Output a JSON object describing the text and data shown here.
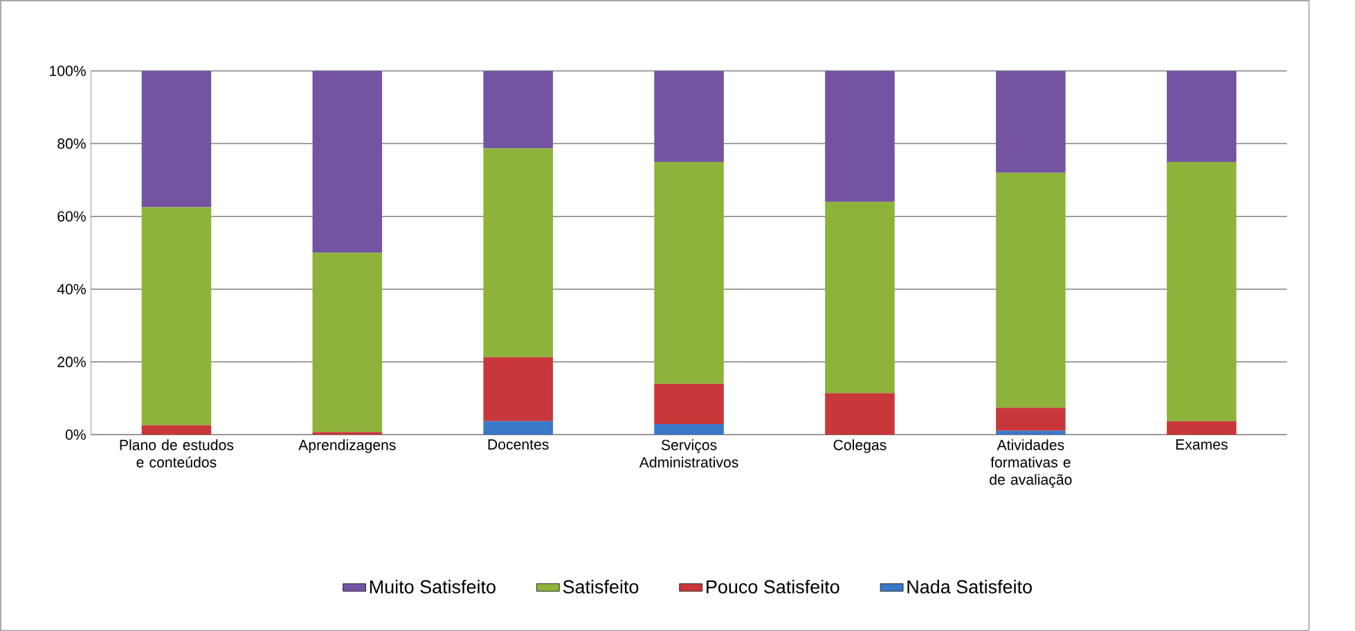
{
  "chart_data": {
    "type": "bar",
    "stacked": true,
    "categories": [
      "Plano de estudos e conteúdos",
      "Aprendizagens",
      "Docentes",
      "Serviços Administrativos",
      "Colegas",
      "Atividades formativas e de avaliação",
      "Exames"
    ],
    "series": [
      {
        "name": "Nada Satisfeito",
        "color": "#3a78c8",
        "values": [
          0,
          0,
          3.7,
          2.9,
          0,
          1.1,
          0
        ]
      },
      {
        "name": "Pouco Satisfeito",
        "color": "#c8383a",
        "values": [
          2.6,
          0.7,
          17.6,
          11.1,
          11.4,
          6.3,
          3.7
        ]
      },
      {
        "name": "Satisfeito",
        "color": "#8db33a",
        "values": [
          59.9,
          49.3,
          57.4,
          61,
          52.6,
          64.6,
          71.3
        ]
      },
      {
        "name": "Muito Satisfeito",
        "color": "#7453a3",
        "values": [
          37.5,
          50,
          21.3,
          25,
          36,
          28,
          25
        ]
      }
    ],
    "ylim": [
      0,
      100
    ],
    "yticks": [
      {
        "value": 0,
        "label": "0%"
      },
      {
        "value": 20,
        "label": "20%"
      },
      {
        "value": 40,
        "label": "40%"
      },
      {
        "value": 60,
        "label": "60%"
      },
      {
        "value": 80,
        "label": "80%"
      },
      {
        "value": 100,
        "label": "100%"
      }
    ],
    "grid": "y",
    "legend": "bottom"
  }
}
